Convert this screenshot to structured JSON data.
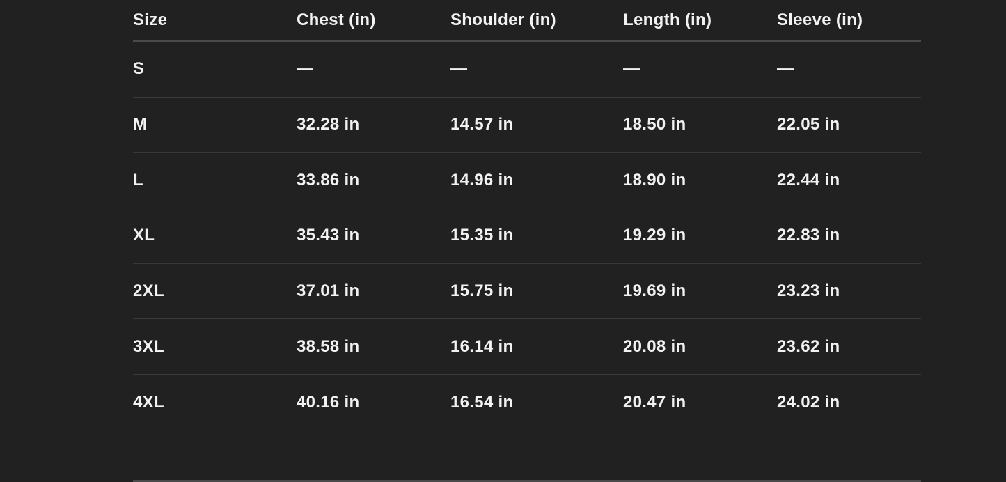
{
  "table": {
    "headers": [
      "Size",
      "Chest (in)",
      "Shoulder (in)",
      "Length (in)",
      "Sleeve (in)"
    ],
    "rows": [
      [
        "S",
        "—",
        "—",
        "—",
        "—"
      ],
      [
        "M",
        "32.28 in",
        "14.57 in",
        "18.50 in",
        "22.05 in"
      ],
      [
        "L",
        "33.86 in",
        "14.96 in",
        "18.90 in",
        "22.44 in"
      ],
      [
        "XL",
        "35.43 in",
        "15.35 in",
        "19.29 in",
        "22.83 in"
      ],
      [
        "2XL",
        "37.01 in",
        "15.75 in",
        "19.69 in",
        "23.23 in"
      ],
      [
        "3XL",
        "38.58 in",
        "16.14 in",
        "20.08 in",
        "23.62 in"
      ],
      [
        "4XL",
        "40.16 in",
        "16.54 in",
        "20.47 in",
        "24.02 in"
      ]
    ]
  },
  "colors": {
    "background": "#212121",
    "text": "#f2f2f2",
    "divider": "#383838"
  }
}
